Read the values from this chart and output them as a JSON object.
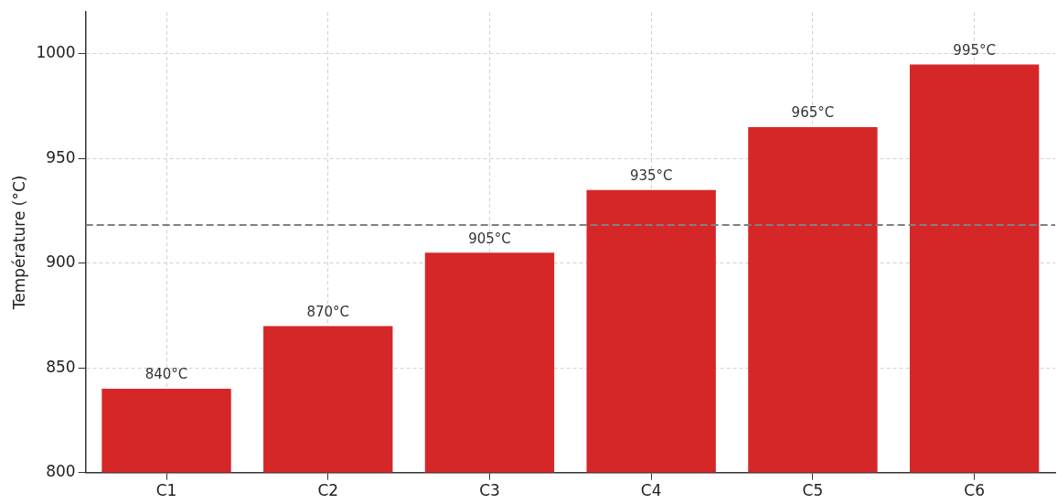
{
  "chart_data": {
    "type": "bar",
    "ylabel": "Température (°C)",
    "categories": [
      "C1",
      "C2",
      "C3",
      "C4",
      "C5",
      "C6"
    ],
    "values": [
      840,
      870,
      905,
      935,
      965,
      995
    ],
    "color": "#d62728",
    "value_labels": [
      "840°C",
      "870°C",
      "905°C",
      "935°C",
      "965°C",
      "995°C"
    ],
    "ylim": [
      800,
      1020
    ],
    "yticks": [
      800,
      850,
      900,
      950,
      1000
    ],
    "ref_lines": [
      {
        "axis": "y",
        "value": 918.3,
        "color": "#808080",
        "line_style": "dashed"
      }
    ],
    "grid": true,
    "legend": false
  }
}
